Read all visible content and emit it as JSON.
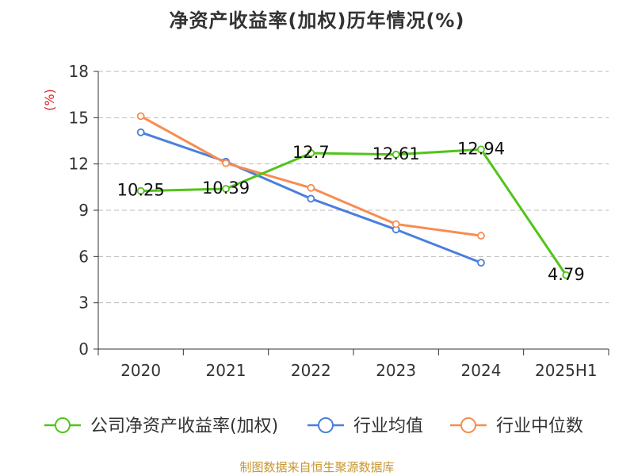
{
  "title": "净资产收益率(加权)历年情况(%)",
  "source_note": "制图数据来自恒生聚源数据库",
  "colors": {
    "company": "#52c41a",
    "industry_avg": "#4a7fdd",
    "industry_median": "#f78d52",
    "source_note": "#c8962f",
    "unit_label": "#e02020",
    "grid": "#bbbbbb",
    "axis": "#333333"
  },
  "chart_data": {
    "type": "line",
    "title": "净资产收益率(加权)历年情况(%)",
    "ylabel": "(%)",
    "xlabel": "",
    "categories": [
      "2020",
      "2021",
      "2022",
      "2023",
      "2024",
      "2025H1"
    ],
    "ylim": [
      0,
      18
    ],
    "yticks": [
      0,
      3,
      6,
      9,
      12,
      15,
      18
    ],
    "grid": "horizontal dashed",
    "legend_position": "bottom",
    "series": [
      {
        "name": "公司净资产收益率(加权)",
        "color": "#52c41a",
        "values": [
          10.25,
          10.39,
          12.7,
          12.61,
          12.94,
          4.79
        ],
        "data_labels": [
          "10.25",
          "10.39",
          "12.7",
          "12.61",
          "12.94",
          "4.79"
        ]
      },
      {
        "name": "行业均值",
        "color": "#4a7fdd",
        "values": [
          14.05,
          12.15,
          9.75,
          7.75,
          5.6,
          null
        ]
      },
      {
        "name": "行业中位数",
        "color": "#f78d52",
        "values": [
          15.1,
          12.05,
          10.45,
          8.1,
          7.35,
          null
        ]
      }
    ]
  }
}
